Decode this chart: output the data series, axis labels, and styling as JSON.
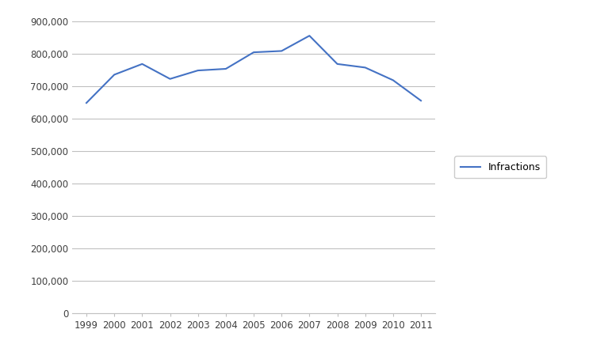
{
  "years": [
    1999,
    2000,
    2001,
    2002,
    2003,
    2004,
    2005,
    2006,
    2007,
    2008,
    2009,
    2010,
    2011
  ],
  "values": [
    648000,
    735000,
    768000,
    722000,
    748000,
    753000,
    804000,
    808000,
    855000,
    768000,
    757000,
    718000,
    655000
  ],
  "line_color": "#4472C4",
  "line_width": 1.5,
  "legend_label": "Infractions",
  "ylim": [
    0,
    900000
  ],
  "ytick_step": 100000,
  "background_color": "#ffffff",
  "grid_color": "#c0c0c0",
  "tick_label_color": "#404040",
  "tick_fontsize": 8.5,
  "legend_fontsize": 9,
  "fig_width": 7.62,
  "fig_height": 4.45,
  "fig_dpi": 100
}
